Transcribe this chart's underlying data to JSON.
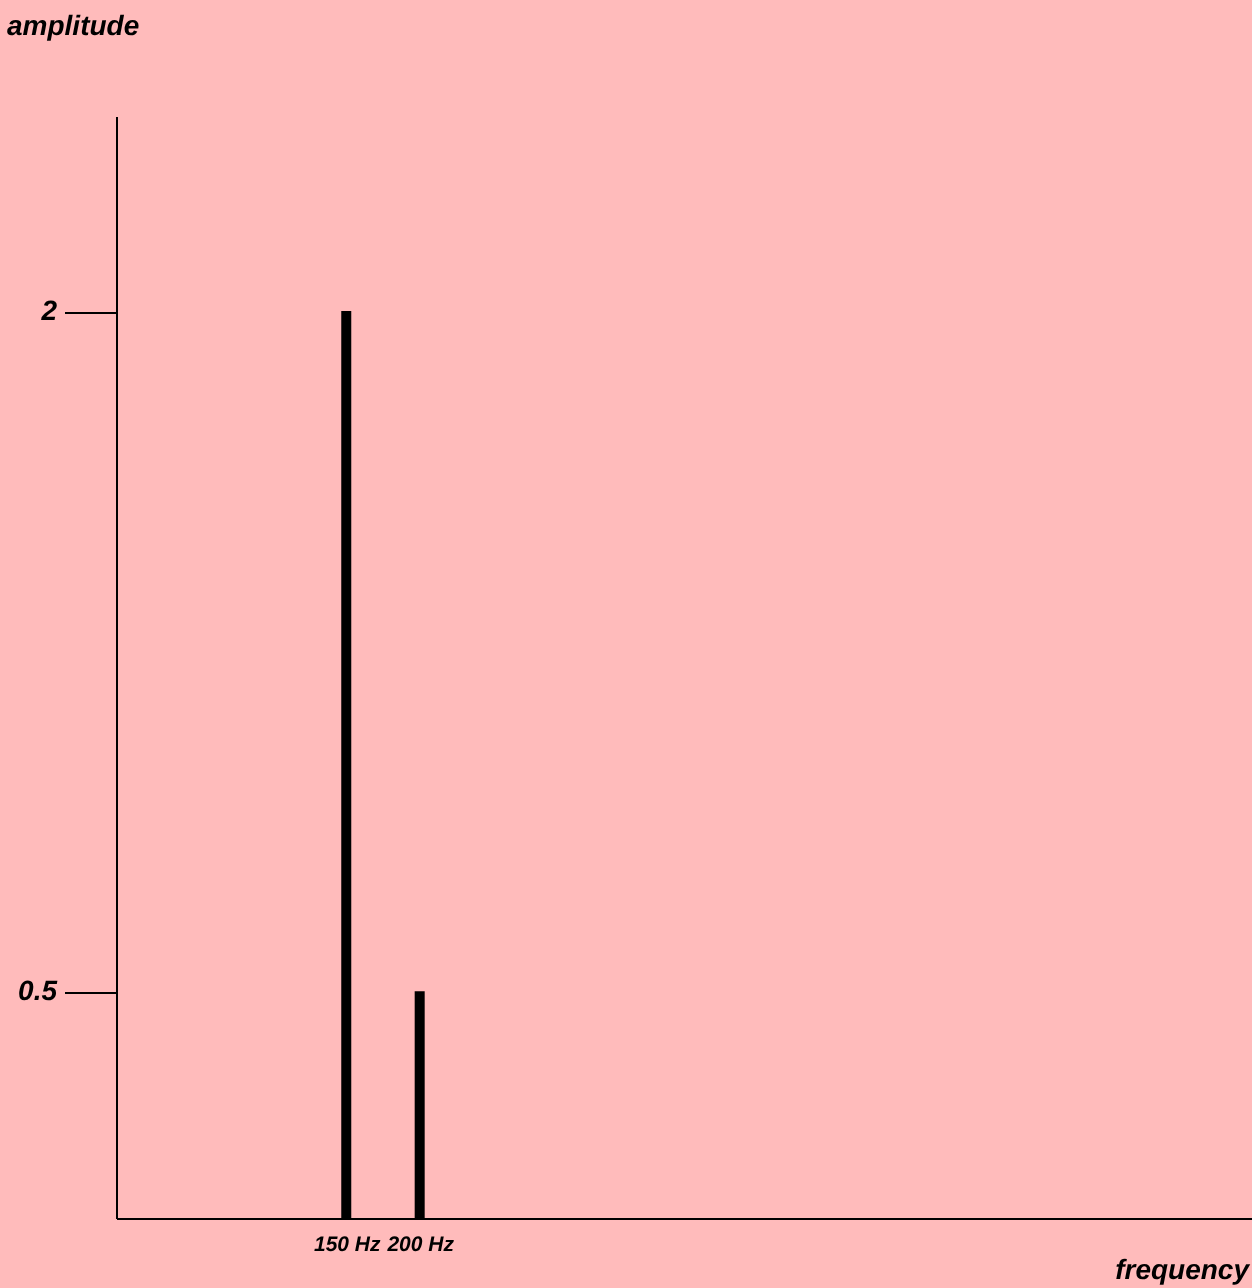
{
  "chart_data": {
    "type": "bar",
    "xlabel": "frequency",
    "ylabel": "amplitude",
    "x": [
      150,
      200
    ],
    "values": [
      2,
      0.5
    ],
    "color": "#000000",
    "xlim": [
      0,
      760
    ],
    "ylim": [
      0,
      2.43
    ],
    "xticks": [
      {
        "value": 150,
        "label": "150 Hz"
      },
      {
        "value": 200,
        "label": "200 Hz"
      }
    ],
    "yticks": [
      0.5,
      2
    ],
    "grid": false
  }
}
